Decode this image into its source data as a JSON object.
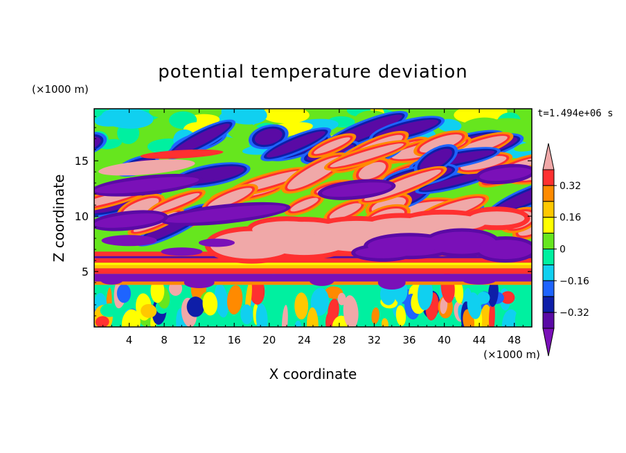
{
  "chart_data": {
    "type": "heatmap",
    "title": "potential temperature deviation",
    "xlabel": "X coordinate",
    "ylabel": "Z coordinate",
    "x_unit": "(×1000 m)",
    "y_unit": "(×1000 m)",
    "time_label": "t=1.494e+06 s",
    "xlim": [
      0,
      50
    ],
    "ylim": [
      0,
      19.7
    ],
    "x_ticks": [
      4,
      8,
      12,
      16,
      20,
      24,
      28,
      32,
      36,
      40,
      44,
      48
    ],
    "y_ticks": [
      5,
      10,
      15
    ],
    "colorbar": {
      "levels": [
        -0.4,
        -0.32,
        -0.24,
        -0.16,
        -0.08,
        0,
        0.08,
        0.16,
        0.24,
        0.32,
        0.4
      ],
      "tick_labels": [
        "0.32",
        "0.16",
        "0",
        "−0.16",
        "−0.32"
      ],
      "tick_values": [
        0.32,
        0.16,
        0,
        -0.16,
        -0.32
      ],
      "colors": [
        "#7a10b8",
        "#5a0aa5",
        "#0e1ea8",
        "#1e64ff",
        "#10d0f0",
        "#00f0a0",
        "#66e61e",
        "#ffff00",
        "#ffc800",
        "#ff8a00",
        "#ff3030",
        "#f0a8a8"
      ]
    },
    "features": [
      {
        "z_range": [
          4.1,
          4.8
        ],
        "value": "below -0.32"
      },
      {
        "z_range": [
          4.8,
          5.3
        ],
        "value": "0.32 to 0.40"
      },
      {
        "z_range": [
          5.8,
          6.2
        ],
        "value": "0.32 to 0.40"
      },
      {
        "z_range": [
          6.4,
          6.8
        ],
        "value": "0.32 to 0.40"
      },
      {
        "x_range": [
          18,
          36
        ],
        "z_range": [
          6.8,
          9.5
        ],
        "value": "above 0.40"
      },
      {
        "x_range": [
          30,
          50
        ],
        "z_range": [
          6.0,
          8.5
        ],
        "value": "below -0.32"
      }
    ]
  }
}
